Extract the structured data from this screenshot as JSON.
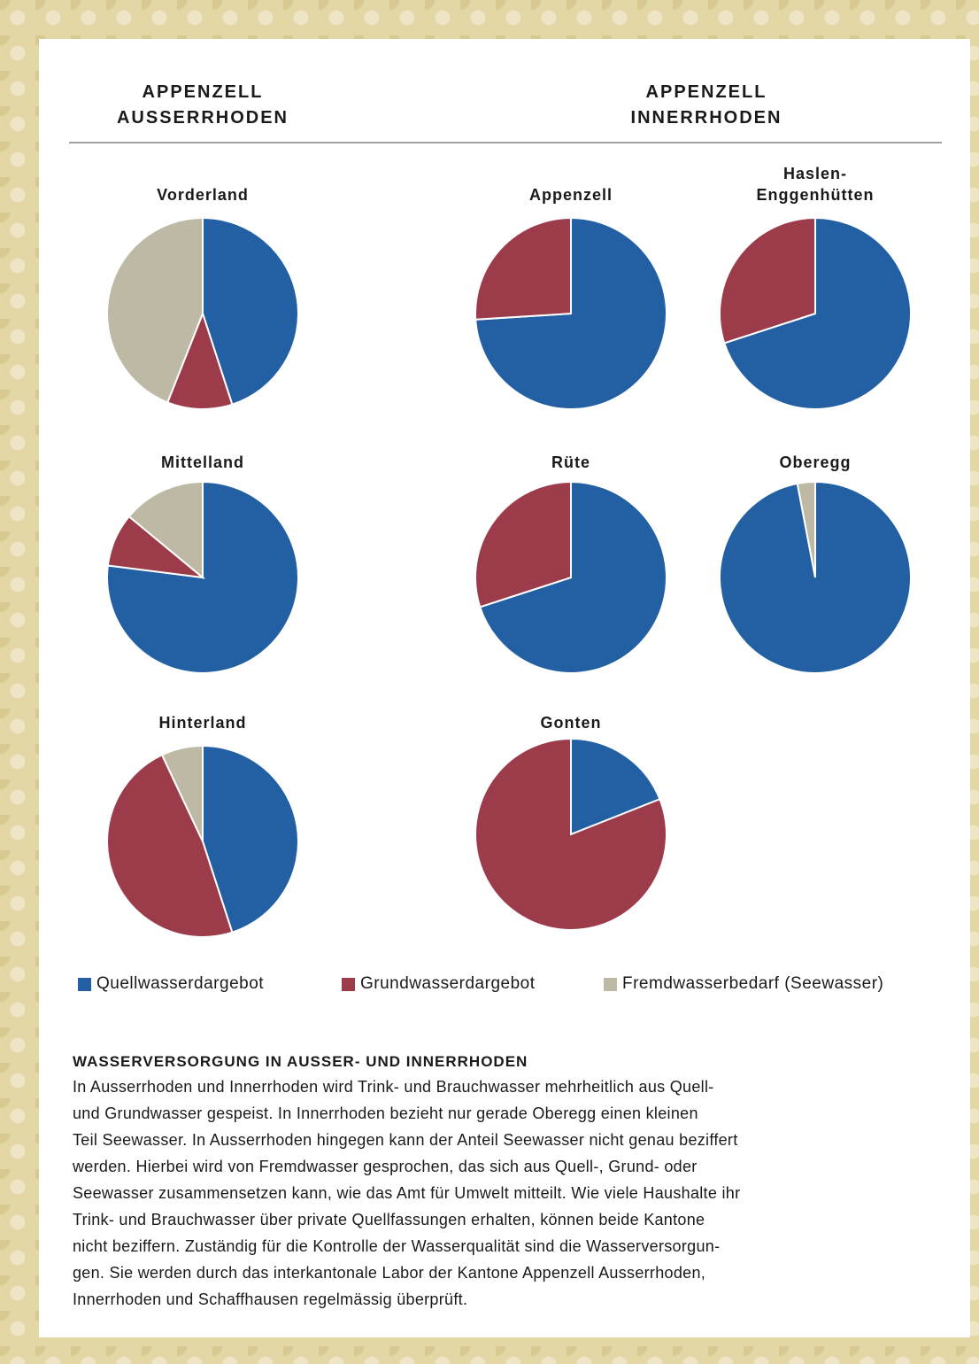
{
  "groups": [
    "APPENZELL AUSSERRHODEN",
    "APPENZELL INNERRHODEN"
  ],
  "legend": [
    {
      "name": "Quellwasserdargebot",
      "color": "#2260a3"
    },
    {
      "name": "Grundwasserdargebot",
      "color": "#9c3b4a"
    },
    {
      "name": "Fremdwasserbedarf (Seewasser)",
      "color": "#bdb9a5"
    }
  ],
  "chart_data": [
    {
      "type": "pie",
      "title": "Vorderland",
      "values": [
        45,
        11,
        44
      ]
    },
    {
      "type": "pie",
      "title": "Mittelland",
      "values": [
        77,
        9,
        14
      ]
    },
    {
      "type": "pie",
      "title": "Hinterland",
      "values": [
        45,
        48,
        7
      ]
    },
    {
      "type": "pie",
      "title": "Appenzell",
      "values": [
        74,
        26,
        null
      ]
    },
    {
      "type": "pie",
      "title": "Haslen-Enggenhütten",
      "values": [
        70,
        30,
        null
      ]
    },
    {
      "type": "pie",
      "title": "Rüte",
      "values": [
        70,
        30,
        null
      ]
    },
    {
      "type": "pie",
      "title": "Oberegg",
      "values": [
        97,
        null,
        3
      ]
    },
    {
      "type": "pie",
      "title": "Gonten",
      "values": [
        19,
        81,
        null
      ]
    }
  ],
  "article": {
    "heading": "WASSERVERSORGUNG IN AUSSER- UND INNERRHODEN",
    "lines": [
      "In Ausserrhoden und Innerrhoden wird Trink- und Brauchwasser mehrheitlich aus Quell-",
      "und Grundwasser gespeist. In Innerrhoden bezieht nur gerade Oberegg einen kleinen",
      "Teil Seewasser. In Ausserrhoden hingegen kann der Anteil Seewasser nicht genau beziffert",
      "werden. Hierbei wird von Fremdwasser gesprochen, das sich aus Quell-, Grund- oder",
      "Seewasser zusammensetzen kann, wie das Amt für Umwelt mitteilt. Wie viele Haushalte ihr",
      "Trink- und Brauchwasser über private Quellfassungen erhalten, können beide Kantone",
      "nicht beziffern. Zuständig für die Kontrolle der Wasserqualität sind die Wasserversorgun-",
      "gen. Sie werden durch das interkantonale Labor der Kantone Appenzell Ausserrhoden,",
      "Innerrhoden und Schaffhausen regelmässig überprüft."
    ]
  }
}
